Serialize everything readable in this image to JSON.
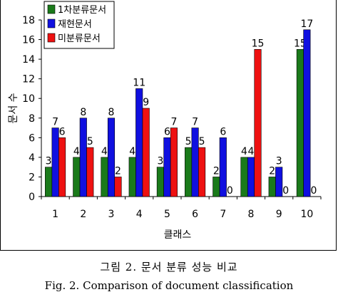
{
  "chart_data": {
    "type": "bar",
    "title": "",
    "xlabel": "클래스",
    "ylabel": "문서 수",
    "categories": [
      "1",
      "2",
      "3",
      "4",
      "5",
      "6",
      "7",
      "8",
      "9",
      "10"
    ],
    "ylim": [
      0,
      18
    ],
    "yticks": [
      "0",
      "2",
      "4",
      "6",
      "8",
      "10",
      "12",
      "14",
      "16",
      "18"
    ],
    "grid": false,
    "legend_position": "top-left",
    "series": [
      {
        "name": "1차분류문서",
        "color": "#1a7a1a",
        "values": [
          3,
          4,
          4,
          4,
          3,
          5,
          2,
          4,
          2,
          15
        ]
      },
      {
        "name": "재현문서",
        "color": "#1010e0",
        "values": [
          7,
          8,
          8,
          11,
          6,
          7,
          6,
          4,
          3,
          17
        ]
      },
      {
        "name": "미분류문서",
        "color": "#ee1111",
        "values": [
          6,
          5,
          2,
          9,
          7,
          5,
          0,
          15,
          0,
          0
        ]
      }
    ]
  },
  "caption_ko": "그림 2.  문서 분류 성능 비교",
  "caption_en": "Fig. 2. Comparison of document classification"
}
